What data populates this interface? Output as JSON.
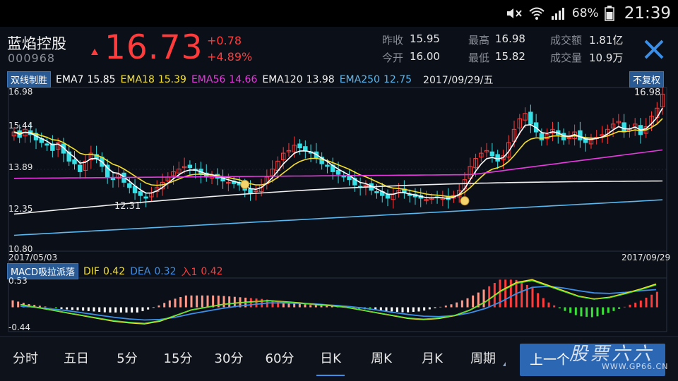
{
  "status_bar": {
    "battery_pct": "68%",
    "clock": "21:39",
    "icons": [
      "mute-icon",
      "wifi-icon",
      "signal-icon",
      "battery-icon"
    ]
  },
  "quote": {
    "name": "蓝焰控股",
    "code": "000968",
    "price": "16.73",
    "change_abs": "+0.78",
    "change_pct": "+4.89%",
    "prev_close_label": "昨收",
    "prev_close": "15.95",
    "open_label": "今开",
    "open": "16.00",
    "high_label": "最高",
    "high": "16.98",
    "low_label": "最低",
    "low": "15.82",
    "amount_label": "成交额",
    "amount": "1.81亿",
    "volume_label": "成交量",
    "volume": "10.9万",
    "up_color": "#ff3b3b",
    "down_color": "#35e0e6"
  },
  "kline": {
    "indicator_btn": "双线制胜",
    "ema": [
      {
        "label": "EMA7",
        "value": "15.85",
        "color": "#ffffff"
      },
      {
        "label": "EMA18",
        "value": "15.39",
        "color": "#f5e02a"
      },
      {
        "label": "EMA56",
        "value": "14.66",
        "color": "#e83ae0"
      },
      {
        "label": "EMA120",
        "value": "13.98",
        "color": "#f0f0f0"
      },
      {
        "label": "EMA250",
        "value": "12.75",
        "color": "#5bb8f0"
      }
    ],
    "date": "2017/09/29/五",
    "adjust_btn": "不复权",
    "y_max_label": "16.98",
    "y_ticks": [
      "16.98",
      "15.44",
      "13.89",
      "12.35",
      "10.80"
    ],
    "ylim": [
      10.8,
      16.98
    ],
    "high_annot": "16.98",
    "low_annot": "12.31",
    "start_date": "2017/05/03",
    "end_date": "2017/09/29"
  },
  "macd": {
    "indicator_btn": "MACD吸拉派落",
    "dif_label": "DIF",
    "dif_value": "0.42",
    "dea_label": "DEA",
    "dea_value": "0.32",
    "signal_label": "入1",
    "signal_value": "0.42",
    "y_top": "0.53",
    "y_bottom": "-0.44",
    "ylim": [
      -0.44,
      0.53
    ]
  },
  "tabs": [
    {
      "label": "分时"
    },
    {
      "label": "五日"
    },
    {
      "label": "5分"
    },
    {
      "label": "15分"
    },
    {
      "label": "30分"
    },
    {
      "label": "60分"
    },
    {
      "label": "日K",
      "active": true
    },
    {
      "label": "周K"
    },
    {
      "label": "月K"
    },
    {
      "label": "周期",
      "has_caret": true
    }
  ],
  "prev_btn": "上一个",
  "watermark": "股票六六",
  "watermark_url": "WWW.GP66.CN",
  "chart_data": {
    "type": "candlestick",
    "price_range": [
      10.8,
      16.98
    ],
    "closes": [
      15.3,
      15.1,
      15.4,
      15.2,
      15.0,
      14.9,
      14.8,
      14.6,
      14.9,
      14.5,
      14.2,
      14.1,
      13.8,
      14.2,
      14.5,
      14.3,
      14.0,
      13.6,
      13.5,
      13.7,
      13.4,
      13.2,
      13.0,
      12.9,
      12.8,
      13.0,
      13.2,
      13.4,
      13.6,
      13.8,
      13.9,
      14.0,
      13.95,
      13.85,
      13.7,
      13.6,
      13.65,
      13.55,
      13.45,
      13.4,
      13.35,
      13.3,
      13.1,
      13.0,
      13.1,
      13.3,
      13.6,
      13.9,
      14.2,
      14.5,
      14.6,
      14.8,
      14.7,
      14.6,
      14.5,
      14.3,
      14.1,
      14.0,
      13.8,
      13.7,
      13.6,
      13.5,
      13.3,
      13.2,
      13.3,
      13.1,
      13.0,
      12.9,
      12.8,
      12.95,
      13.1,
      13.0,
      12.9,
      12.85,
      12.8,
      12.75,
      12.8,
      12.85,
      12.8,
      12.75,
      12.9,
      13.1,
      13.5,
      14.0,
      14.3,
      14.5,
      14.6,
      14.4,
      14.2,
      14.4,
      14.9,
      15.4,
      15.8,
      16.0,
      15.6,
      15.3,
      15.0,
      15.2,
      15.4,
      15.2,
      15.0,
      15.1,
      15.3,
      15.0,
      14.9,
      15.0,
      15.1,
      15.2,
      15.4,
      15.6,
      15.7,
      15.3,
      15.4,
      15.6,
      15.2,
      15.5,
      15.9,
      16.2,
      16.73
    ],
    "macd_dif": [
      0.05,
      0.0,
      -0.05,
      -0.1,
      -0.15,
      -0.2,
      -0.25,
      -0.28,
      -0.3,
      -0.25,
      -0.15,
      -0.05,
      0.0,
      0.05,
      0.08,
      0.1,
      0.12,
      0.1,
      0.08,
      0.05,
      0.03,
      0.0,
      -0.05,
      -0.1,
      -0.15,
      -0.2,
      -0.22,
      -0.2,
      -0.15,
      -0.05,
      0.1,
      0.3,
      0.45,
      0.5,
      0.4,
      0.3,
      0.2,
      0.15,
      0.18,
      0.25,
      0.33,
      0.42
    ],
    "macd_dea": [
      0.02,
      0.0,
      -0.03,
      -0.06,
      -0.1,
      -0.14,
      -0.18,
      -0.21,
      -0.23,
      -0.22,
      -0.18,
      -0.12,
      -0.07,
      -0.02,
      0.02,
      0.05,
      0.08,
      0.08,
      0.07,
      0.06,
      0.04,
      0.02,
      -0.01,
      -0.05,
      -0.09,
      -0.13,
      -0.16,
      -0.17,
      -0.15,
      -0.1,
      -0.02,
      0.1,
      0.25,
      0.36,
      0.38,
      0.35,
      0.3,
      0.26,
      0.25,
      0.27,
      0.3,
      0.32
    ]
  }
}
